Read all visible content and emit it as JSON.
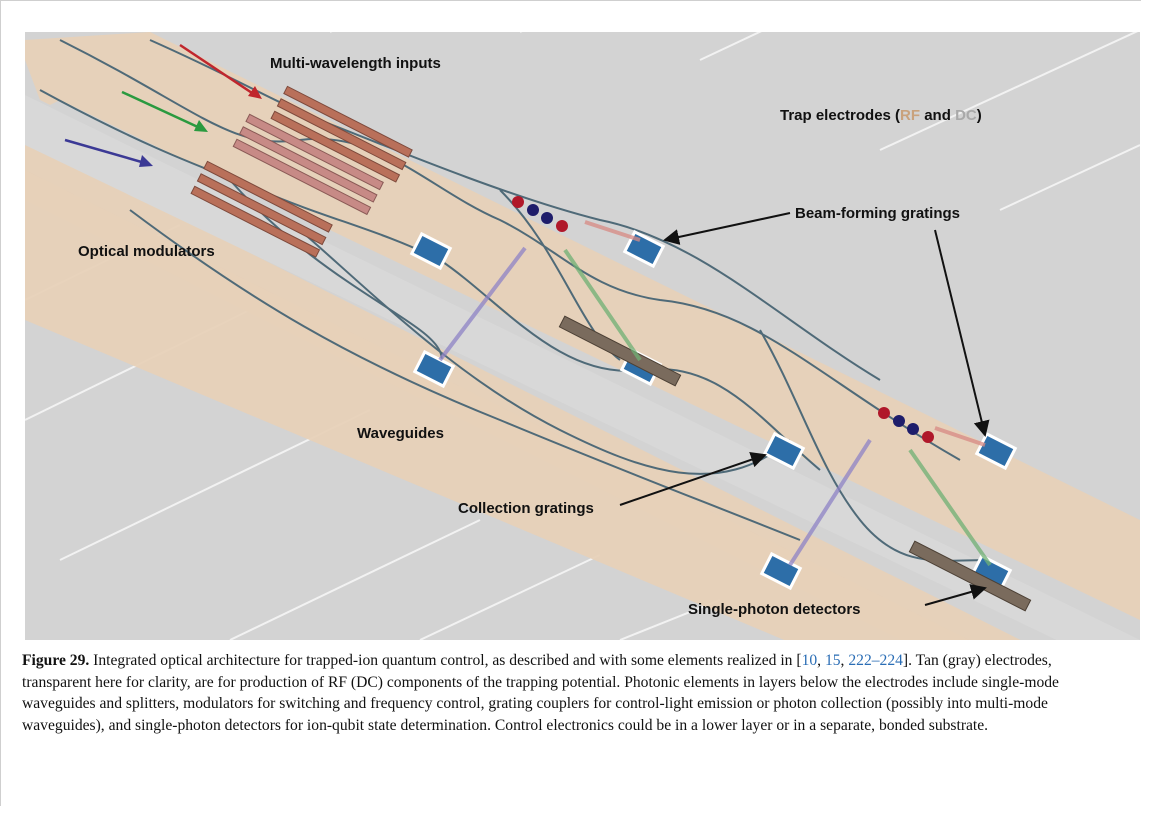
{
  "figure": {
    "labels": {
      "inputs": "Multi-wavelength inputs",
      "trap": [
        {
          "text": "Trap electrodes ("
        },
        {
          "text": "RF",
          "color": "#c9a27c"
        },
        {
          "text": " and "
        },
        {
          "text": "DC",
          "color": "#a9a9a9"
        },
        {
          "text": ")"
        }
      ],
      "beam": "Beam-forming gratings",
      "modulators": "Optical modulators",
      "waveguides": "Waveguides",
      "collection": "Collection gratings",
      "detectors": "Single-photon detectors"
    },
    "caption": [
      {
        "text": "Figure 29.",
        "style": "bold"
      },
      {
        "text": " Integrated optical architecture for trapped-ion quantum control, as described and with some elements realized in ["
      },
      {
        "text": "10",
        "style": "link"
      },
      {
        "text": ", "
      },
      {
        "text": "15",
        "style": "link"
      },
      {
        "text": ", "
      },
      {
        "text": "222–224",
        "style": "link"
      },
      {
        "text": "]. Tan (gray) electrodes, transparent here for clarity, are for production of RF (DC) components of the trapping potential. Photonic elements in layers below the electrodes include single-mode waveguides and splitters, modulators for switching and frequency control, grating couplers for control-light emission or photon collection (possibly into multi-mode waveguides), and single-photon detectors for ion-qubit state determination. Control electronics could be in a lower layer or in a separate, bonded substrate."
      }
    ]
  }
}
